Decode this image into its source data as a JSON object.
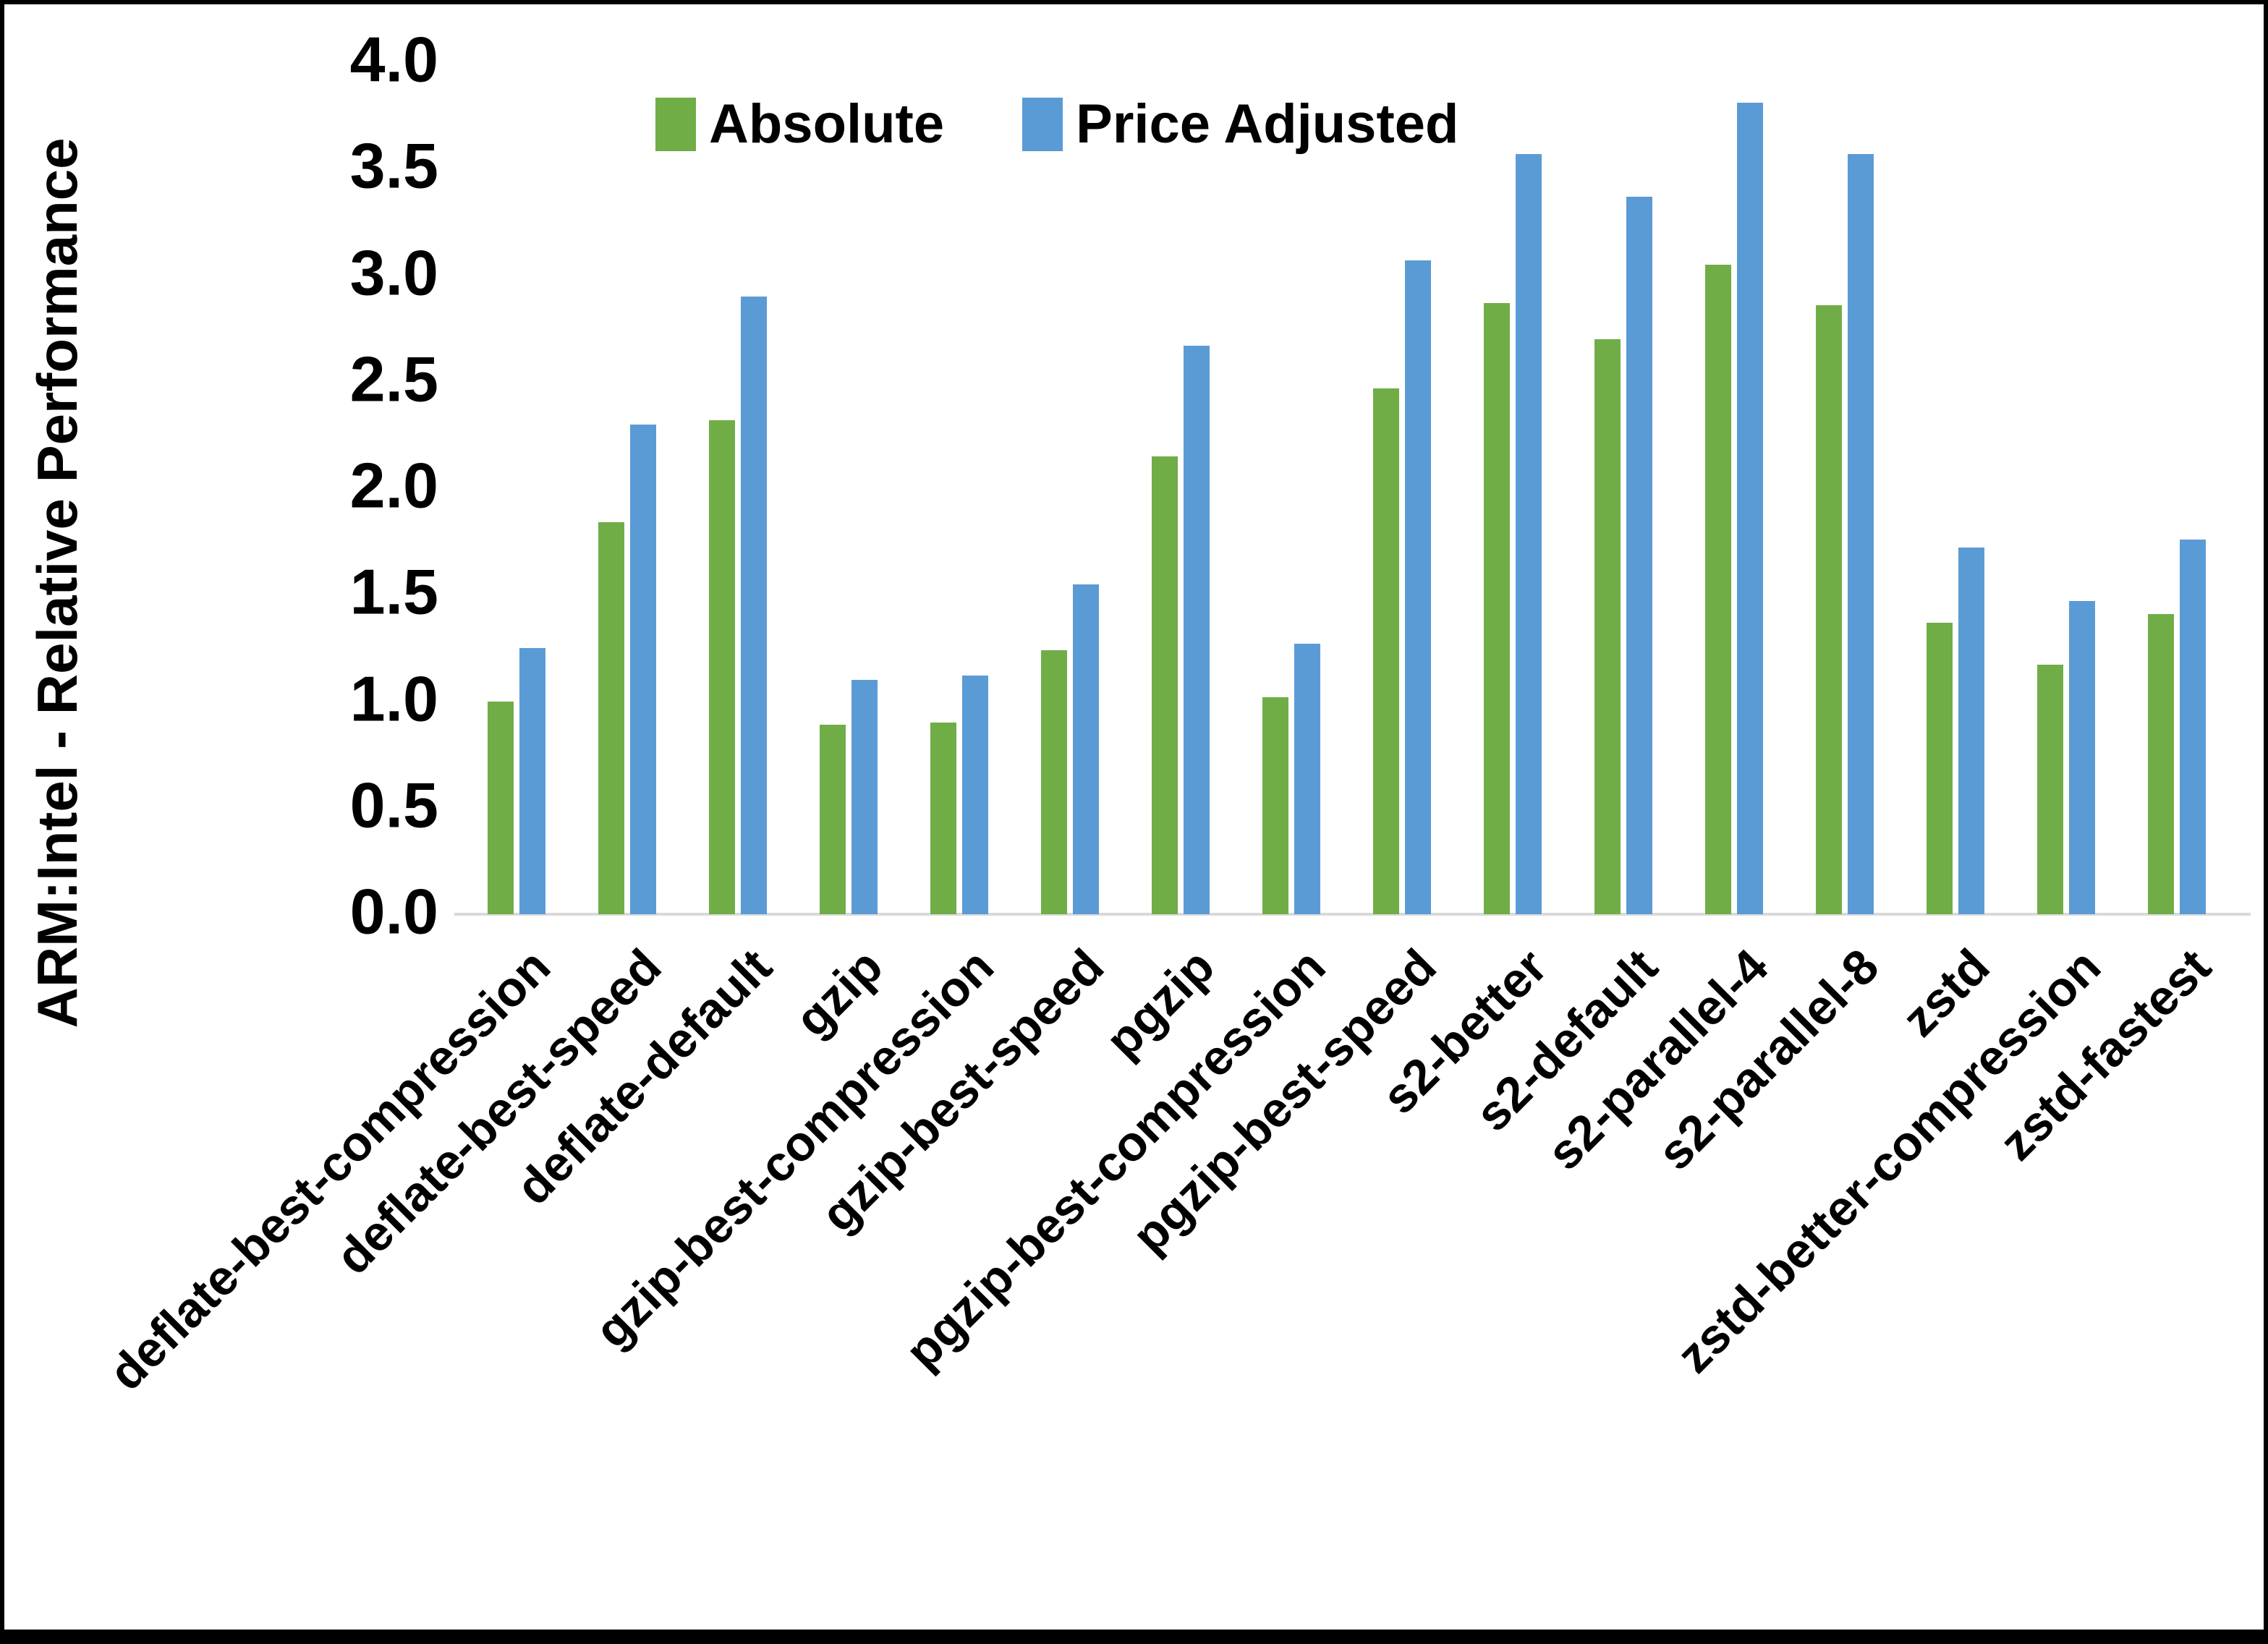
{
  "chart_data": {
    "type": "bar",
    "title": "",
    "xlabel": "",
    "ylabel": "ARM:Intel - Relative Performance",
    "ylim": [
      0.0,
      4.0
    ],
    "yticks": [
      "4.0",
      "3.5",
      "3.0",
      "2.5",
      "2.0",
      "1.5",
      "1.0",
      "0.5",
      "0.0"
    ],
    "grid": false,
    "legend_position": "top-center",
    "background": "#FFFFFF",
    "frame_color": "#000000",
    "text_color": "#000000",
    "axis_line_color": "#D9D9D9",
    "categories": [
      "deflate-best-compression",
      "deflate-best-speed",
      "deflate-default",
      "gzip",
      "gzip-best-compression",
      "gzip-best-speed",
      "pgzip",
      "pgzip-best-compression",
      "pgzip-best-speed",
      "s2-better",
      "s2-default",
      "s2-parallel-4",
      "s2-parallel-8",
      "zstd",
      "zstd-better-compression",
      "zstd-fastest"
    ],
    "series": [
      {
        "name": "Absolute",
        "color": "#70AD47",
        "values": [
          1.0,
          1.84,
          2.32,
          0.89,
          0.9,
          1.24,
          2.15,
          1.02,
          2.47,
          2.87,
          2.7,
          3.05,
          2.86,
          1.37,
          1.17,
          1.41
        ]
      },
      {
        "name": "Price Adjusted",
        "color": "#5B9BD5",
        "values": [
          1.25,
          2.3,
          2.9,
          1.1,
          1.12,
          1.55,
          2.67,
          1.27,
          3.07,
          3.57,
          3.37,
          3.81,
          3.57,
          1.72,
          1.47,
          1.76
        ]
      }
    ]
  }
}
